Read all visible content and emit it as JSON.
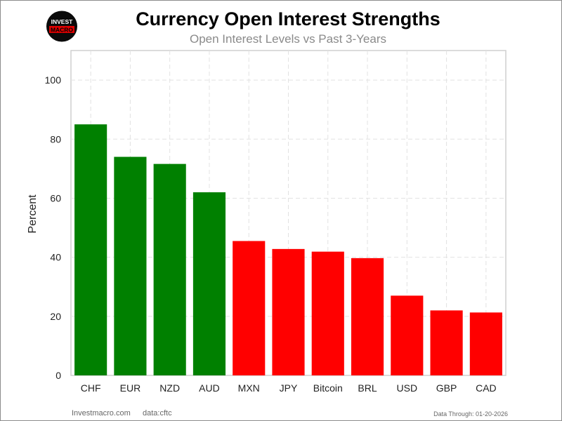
{
  "brand": {
    "logo_top": "INVEST",
    "logo_bottom": "MACRO"
  },
  "header": {
    "title": "Currency Open Interest Strengths",
    "subtitle": "Open Interest Levels vs Past 3-Years"
  },
  "footer": {
    "site": "Investmacro.com",
    "source": "data:cftc",
    "date": "Data Through: 01-20-2026"
  },
  "colors": {
    "positive": "#008000",
    "negative": "#ff0000",
    "grid": "#e2e2e2",
    "axis": "#cfcfcf"
  },
  "chart_data": {
    "type": "bar",
    "title": "Currency Open Interest Strengths",
    "subtitle": "Open Interest Levels vs Past 3-Years",
    "xlabel": "",
    "ylabel": "Percent",
    "ylim": [
      0,
      110
    ],
    "yticks": [
      "0",
      "20",
      "40",
      "60",
      "80",
      "100"
    ],
    "grid": true,
    "categories": [
      "CHF",
      "EUR",
      "NZD",
      "AUD",
      "MXN",
      "JPY",
      "Bitcoin",
      "BRL",
      "USD",
      "GBP",
      "CAD"
    ],
    "values": [
      85,
      74,
      71.6,
      62,
      45.5,
      42.8,
      41.9,
      39.7,
      27,
      22,
      21.3
    ],
    "bar_colors": [
      "green",
      "green",
      "green",
      "green",
      "red",
      "red",
      "red",
      "red",
      "red",
      "red",
      "red"
    ]
  }
}
